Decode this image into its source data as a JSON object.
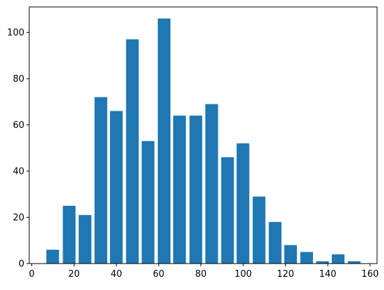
{
  "chart_data": {
    "type": "bar",
    "title": "",
    "xlabel": "",
    "ylabel": "",
    "x": [
      9.9,
      17.7,
      25.2,
      32.7,
      40.0,
      47.6,
      55.0,
      62.6,
      69.9,
      77.6,
      85.1,
      92.6,
      99.9,
      107.5,
      115.1,
      122.4,
      130.0,
      137.5,
      144.9,
      152.5
    ],
    "values": [
      6,
      25,
      21,
      72,
      66,
      97,
      53,
      106,
      64,
      64,
      69,
      46,
      52,
      29,
      18,
      8,
      5,
      1,
      4,
      1
    ],
    "bar_width": 6,
    "xlim": [
      -1.2,
      163.3
    ],
    "ylim": [
      0,
      111
    ],
    "xticks": [
      0,
      20,
      40,
      60,
      80,
      100,
      120,
      140,
      160
    ],
    "yticks": [
      0,
      20,
      40,
      60,
      80,
      100
    ],
    "grid": false,
    "bar_color": "#1f77b4"
  }
}
